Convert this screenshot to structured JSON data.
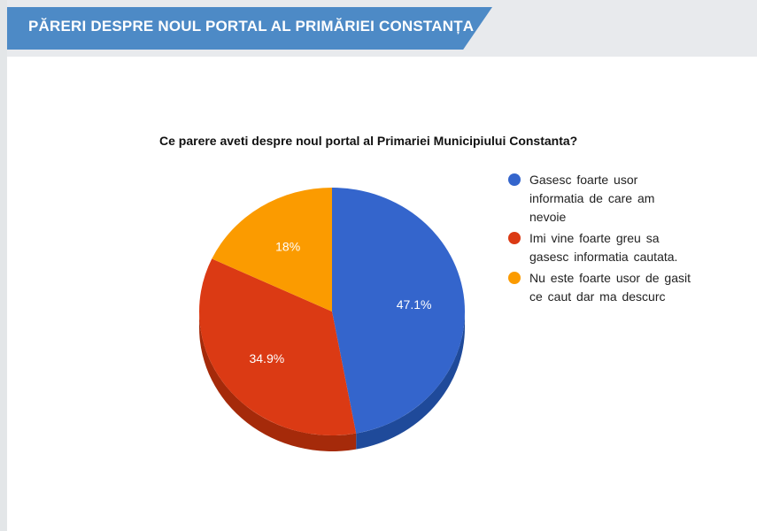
{
  "header": {
    "title": "PĂRERI DESPRE NOUL PORTAL AL PRIMĂRIEI CONSTANȚA"
  },
  "chart_data": {
    "type": "pie",
    "title": "Ce parere aveti despre noul portal al Primariei Municipiului Constanta?",
    "slices": [
      {
        "name": "Gasesc foarte usor informatia de care am nevoie",
        "value": 47.1,
        "label": "47.1%",
        "color": "#3465cc",
        "shade": "#1f4a9a"
      },
      {
        "name": "Imi vine foarte greu sa gasesc informatia cautata.",
        "value": 34.9,
        "label": "34.9%",
        "color": "#db3a14",
        "shade": "#a52a0a"
      },
      {
        "name": "Nu este foarte usor de gasit ce caut dar ma descurc",
        "value": 18,
        "label": "18%",
        "color": "#fb9b00",
        "shade": "#c07400"
      }
    ],
    "legend_position": "right",
    "style": "3d"
  }
}
